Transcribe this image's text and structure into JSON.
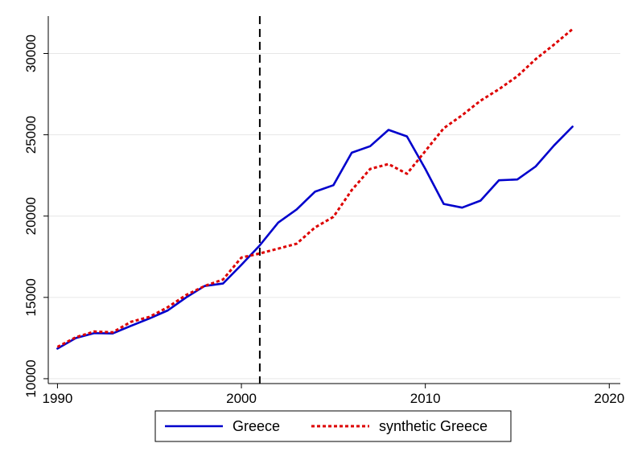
{
  "chart_data": {
    "type": "line",
    "title": "",
    "xlabel": "",
    "ylabel": "",
    "xlim": [
      1989.5,
      2020.6
    ],
    "ylim": [
      9700,
      32300
    ],
    "x_ticks": [
      1990,
      2000,
      2010,
      2020
    ],
    "y_ticks": [
      10000,
      15000,
      20000,
      25000,
      30000
    ],
    "grid": true,
    "legend_position": "bottom",
    "treatment_year": 2001,
    "treatment_line_style": "dashed",
    "series": [
      {
        "name": "Greece",
        "color": "#0000cc",
        "style": "solid",
        "x": [
          1990,
          1991,
          1992,
          1993,
          1994,
          1995,
          1996,
          1997,
          1998,
          1999,
          2000,
          2001,
          2002,
          2003,
          2004,
          2005,
          2006,
          2007,
          2008,
          2009,
          2010,
          2011,
          2012,
          2013,
          2014,
          2015,
          2016,
          2017,
          2018
        ],
        "values": [
          11850,
          12500,
          12800,
          12780,
          13250,
          13700,
          14200,
          15000,
          15700,
          15850,
          17000,
          18200,
          19600,
          20400,
          21500,
          21900,
          23900,
          24300,
          25300,
          24900,
          22900,
          20750,
          20520,
          20950,
          22200,
          22250,
          23050,
          24350,
          25500
        ]
      },
      {
        "name": "synthetic Greece",
        "color": "#dd0000",
        "style": "dotted",
        "x": [
          1990,
          1991,
          1992,
          1993,
          1994,
          1995,
          1996,
          1997,
          1998,
          1999,
          2000,
          2001,
          2002,
          2003,
          2004,
          2005,
          2006,
          2007,
          2008,
          2009,
          2010,
          2011,
          2012,
          2013,
          2014,
          2015,
          2016,
          2017,
          2018
        ],
        "values": [
          11950,
          12550,
          12900,
          12850,
          13500,
          13800,
          14400,
          15150,
          15700,
          16100,
          17450,
          17700,
          18000,
          18300,
          19300,
          19950,
          21600,
          22900,
          23200,
          22600,
          24000,
          25400,
          26200,
          27100,
          27800,
          28600,
          29650,
          30550,
          31500
        ]
      }
    ]
  }
}
